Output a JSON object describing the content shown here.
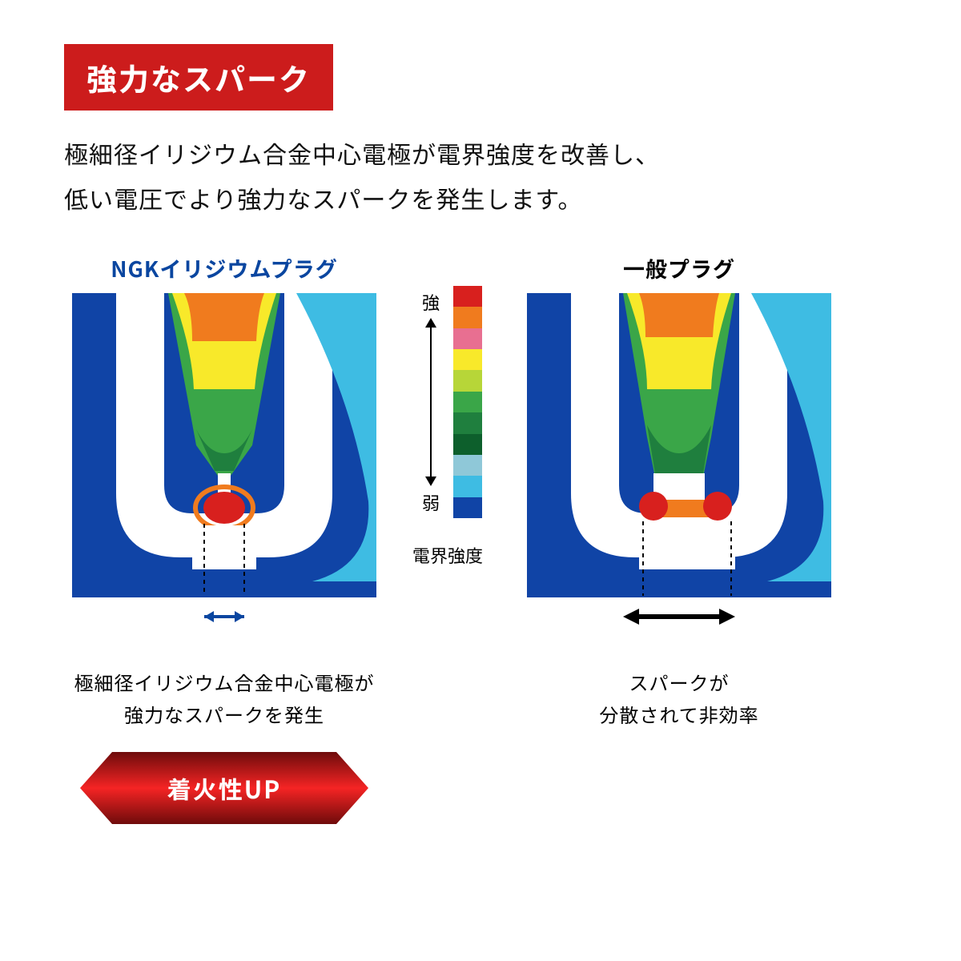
{
  "title": "強力なスパーク",
  "description_line1": "極細径イリジウム合金中心電極が電界強度を改善し、",
  "description_line2": "低い電圧でより強力なスパークを発生します。",
  "left": {
    "title": "NGKイリジウムプラグ",
    "title_color": "#0a46a0",
    "caption_line1": "極細径イリジウム合金中心電極が",
    "caption_line2": "強力なスパークを発生",
    "gap_arrow_color": "#0a46a0",
    "gap_arrow_dashed": true,
    "gap_arrow_width": 60,
    "tip_narrow": true
  },
  "right": {
    "title": "一般プラグ",
    "title_color": "#000000",
    "caption_line1": "スパークが",
    "caption_line2": "分散されて非効率",
    "gap_arrow_color": "#000000",
    "gap_arrow_dashed": false,
    "gap_arrow_width": 130,
    "tip_narrow": false
  },
  "legend": {
    "label_strong": "強",
    "label_weak": "弱",
    "caption": "電界強度",
    "colors": [
      "#d8201e",
      "#f07b1e",
      "#e86f91",
      "#f8e92a",
      "#b7d638",
      "#3aa648",
      "#1f7f3e",
      "#0d5f2c",
      "#8fc8d8",
      "#3ebce3",
      "#1044a6"
    ]
  },
  "result_tag": {
    "text": "着火性UP",
    "grad_dark": "#6e0b0b",
    "grad_light": "#f52424"
  },
  "colors": {
    "title_bg": "#cc1c1c",
    "body_blue": "#1044a6",
    "white": "#ffffff"
  }
}
